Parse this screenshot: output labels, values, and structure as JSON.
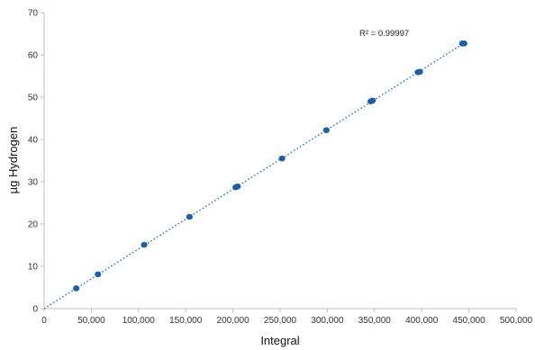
{
  "chart_data": {
    "type": "scatter",
    "title": "",
    "xlabel": "Integral",
    "ylabel": "µg Hydrogen",
    "xlim": [
      0,
      500000
    ],
    "ylim": [
      0,
      70
    ],
    "x_ticks": [
      0,
      50000,
      100000,
      150000,
      200000,
      250000,
      300000,
      350000,
      400000,
      450000,
      500000
    ],
    "x_tick_labels": [
      "0",
      "50,000",
      "100,000",
      "150,000",
      "200,000",
      "250,000",
      "300,000",
      "350,000",
      "400,000",
      "450,000",
      "500,000"
    ],
    "y_ticks": [
      0,
      10,
      20,
      30,
      40,
      50,
      60,
      70
    ],
    "y_tick_labels": [
      "0",
      "10",
      "20",
      "30",
      "40",
      "50",
      "60",
      "70"
    ],
    "grid": false,
    "points": [
      {
        "x": 34000,
        "y": 4.8
      },
      {
        "x": 57000,
        "y": 8.1
      },
      {
        "x": 106000,
        "y": 15.1
      },
      {
        "x": 154000,
        "y": 21.7
      },
      {
        "x": 203000,
        "y": 28.7
      },
      {
        "x": 205000,
        "y": 28.9
      },
      {
        "x": 252000,
        "y": 35.5
      },
      {
        "x": 299000,
        "y": 42.2
      },
      {
        "x": 346000,
        "y": 49.0
      },
      {
        "x": 348000,
        "y": 49.2
      },
      {
        "x": 396000,
        "y": 55.9
      },
      {
        "x": 398000,
        "y": 56.0
      },
      {
        "x": 443000,
        "y": 62.7
      },
      {
        "x": 445000,
        "y": 62.7
      }
    ],
    "trendline": {
      "x": [
        0,
        445000
      ],
      "y": [
        0,
        62.8
      ],
      "style": "dotted"
    },
    "annotation": "R² = 0.99997",
    "point_color": "#1f5fa8",
    "trend_color": "#2e75b6"
  }
}
